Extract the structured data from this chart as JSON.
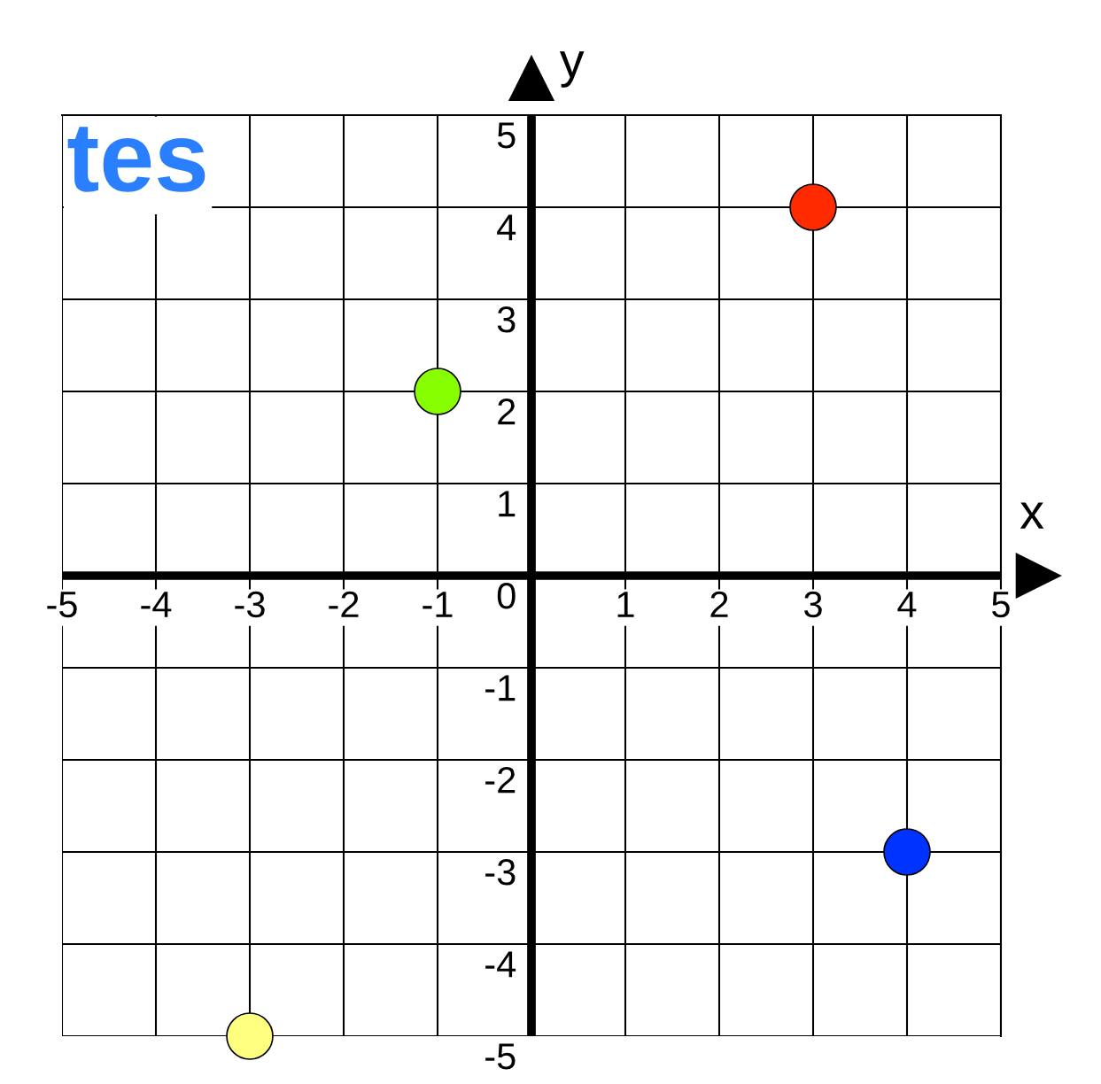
{
  "chart_data": {
    "type": "scatter",
    "xlabel": "x",
    "ylabel": "y",
    "annotations": [
      "tes"
    ],
    "x": [
      3,
      -1,
      4,
      -3
    ],
    "values": [
      4,
      2,
      -3,
      -5
    ],
    "colors": [
      "#ff2a00",
      "#88ff00",
      "#0033ff",
      "#ffff7f"
    ],
    "marker": "circle",
    "xlim": [
      -5,
      5
    ],
    "ylim": [
      -5,
      5
    ],
    "xticks": [
      -5,
      -4,
      -3,
      -2,
      -1,
      {
        "value": 0,
        "label": null
      },
      1,
      2,
      3,
      4,
      5
    ],
    "yticks": [
      -5,
      -4,
      -3,
      -2,
      -1,
      {
        "value": 0,
        "label": "0"
      },
      1,
      2,
      3,
      4,
      5
    ],
    "grid": true
  }
}
